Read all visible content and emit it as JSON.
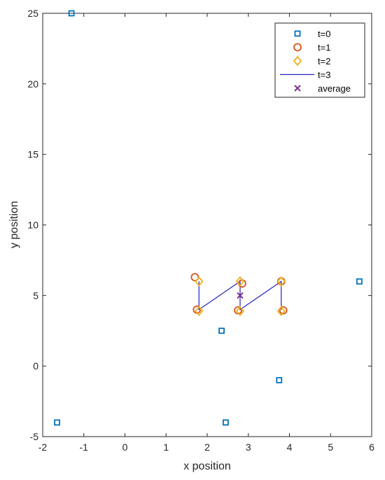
{
  "chart_data": {
    "type": "scatter",
    "xlabel": "x position",
    "ylabel": "y position",
    "xlim": [
      -2,
      6
    ],
    "ylim": [
      -5,
      25
    ],
    "xticks": [
      "-2",
      "-1",
      "0",
      "1",
      "2",
      "3",
      "4",
      "5",
      "6"
    ],
    "yticks": [
      "-5",
      "0",
      "5",
      "10",
      "15",
      "20",
      "25"
    ],
    "grid": false,
    "legend_position": "top-right",
    "series": [
      {
        "name": "t=0",
        "marker": "square",
        "color": "#0072BD",
        "points": [
          [
            -1.3,
            25
          ],
          [
            -1.65,
            -4
          ],
          [
            2.35,
            2.5
          ],
          [
            2.45,
            -4
          ],
          [
            3.75,
            -1
          ],
          [
            5.7,
            6
          ]
        ]
      },
      {
        "name": "t=1",
        "marker": "circle",
        "color": "#D95319",
        "points": [
          [
            1.7,
            6.3
          ],
          [
            1.75,
            4
          ],
          [
            2.85,
            5.85
          ],
          [
            2.75,
            3.95
          ],
          [
            3.8,
            6
          ],
          [
            3.85,
            3.95
          ]
        ]
      },
      {
        "name": "t=2",
        "marker": "diamond",
        "color": "#EDB120",
        "points": [
          [
            1.8,
            6
          ],
          [
            1.8,
            3.9
          ],
          [
            2.8,
            6
          ],
          [
            2.8,
            3.9
          ],
          [
            3.8,
            6
          ],
          [
            3.8,
            3.9
          ]
        ]
      },
      {
        "name": "t=3",
        "marker": "line",
        "color": "#2222BB",
        "points": [
          [
            1.8,
            6
          ],
          [
            1.8,
            4
          ],
          [
            2.8,
            6
          ],
          [
            2.8,
            4
          ],
          [
            3.8,
            6
          ],
          [
            3.8,
            4
          ]
        ]
      },
      {
        "name": "average",
        "marker": "x",
        "color": "#7E2F8E",
        "points": [
          [
            2.8,
            5
          ]
        ]
      }
    ]
  }
}
